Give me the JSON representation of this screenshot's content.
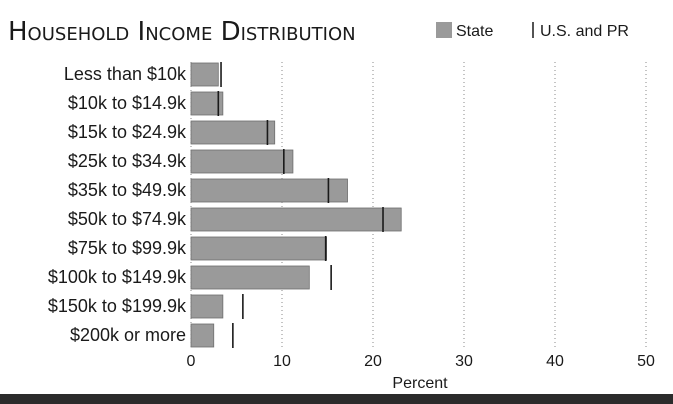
{
  "chart_data": {
    "type": "bar",
    "orientation": "horizontal",
    "title": "Household Income Distribution",
    "xlabel": "Percent",
    "xlim": [
      0,
      50
    ],
    "xticks": [
      "0",
      "10",
      "20",
      "30",
      "40",
      "50"
    ],
    "categories": [
      "Less than $10k",
      "$10k to $14.9k",
      "$15k to $24.9k",
      "$25k to $34.9k",
      "$35k to $49.9k",
      "$50k to $74.9k",
      "$75k to $99.9k",
      "$100k to $149.9k",
      "$150k to $199.9k",
      "$200k or more"
    ],
    "series": [
      {
        "name": "State",
        "style": "bar",
        "color": "#9a9a9a",
        "values": [
          3.0,
          3.5,
          9.2,
          11.2,
          17.2,
          23.1,
          14.9,
          13.0,
          3.5,
          2.5
        ]
      },
      {
        "name": "U.S. and PR",
        "style": "tick",
        "color": "#1a1a1a",
        "values": [
          3.3,
          3.0,
          8.4,
          10.2,
          15.1,
          21.1,
          14.8,
          15.4,
          5.7,
          4.6
        ]
      }
    ],
    "legend_position": "top-right",
    "grid": true,
    "grid_axis": "x",
    "grid_style": "dotted"
  }
}
